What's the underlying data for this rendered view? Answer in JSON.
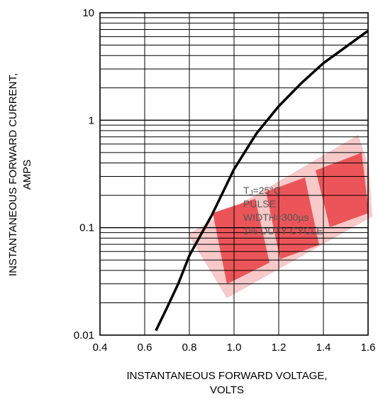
{
  "chart_data": {
    "type": "line",
    "title": "",
    "xlabel_lines": [
      "INSTANTANEOUS FORWARD VOLTAGE,",
      "VOLTS"
    ],
    "ylabel_lines": [
      "INSTANTANEOUS FORWARD CURRENT,",
      "AMPS"
    ],
    "xlim": [
      0.4,
      1.6
    ],
    "ylim": [
      0.01,
      10
    ],
    "y_scale": "log",
    "grid": true,
    "x_ticks": [
      "0.4",
      "0.6",
      "0.8",
      "1.0",
      "1.2",
      "1.4",
      "1.6"
    ],
    "y_ticks": [
      "0.01",
      "0.1",
      "1",
      "10"
    ],
    "annotation": {
      "tj_main": "T",
      "tj_sub": "J",
      "tj_rest": "=25°C",
      "line2": "PULSE",
      "line3": "WIDTH=300µs",
      "line4": "1% DUTY CYCLE"
    },
    "watermark_color": "#e8383d",
    "series": [
      {
        "x": [
          0.65,
          0.7,
          0.75,
          0.8,
          0.85,
          0.9,
          1.0,
          1.1,
          1.2,
          1.3,
          1.4,
          1.5,
          1.6
        ],
        "y": [
          0.011,
          0.018,
          0.03,
          0.055,
          0.085,
          0.13,
          0.35,
          0.75,
          1.35,
          2.2,
          3.4,
          4.8,
          6.8
        ]
      }
    ]
  }
}
